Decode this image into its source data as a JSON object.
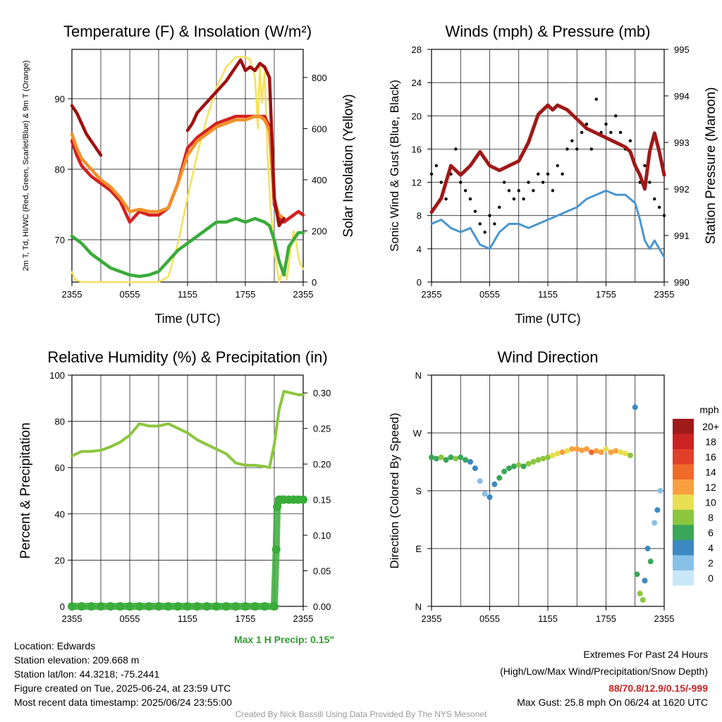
{
  "figure": {
    "credit": "Created By Nick Bassill Using Data Provided By The NYS Mesonet"
  },
  "footer": {
    "location": "Location: Edwards",
    "elevation": "Station elevation: 209.668 m",
    "latlon": "Station lat/lon: 44.3218; -75.2441",
    "created": "Figure created on Tue, 2025-06-24, at 23:59 UTC",
    "recent": "Most recent data timestamp: 2025/06/24 23:55:00",
    "extremes_title": "Extremes For Past 24 Hours",
    "extremes_sub": "(High/Low/Max Wind/Precipitation/Snow Depth)",
    "extremes_values": "88/70.8/12.9/0.15/-999",
    "max_gust": "Max Gust: 25.8 mph On 06/24 at 1620 UTC",
    "max_precip": "Max 1 H Precip: 0.15\""
  },
  "colors": {
    "temp": "#d42020",
    "heat_index": "#e35f1d",
    "temp_9m": "#f0902a",
    "windchill_high": "#9e1010",
    "dewpoint": "#3aab3a",
    "solar": "#f5e05a",
    "wind": "#4a96d0",
    "gust": "#000000",
    "pressure": "#a01818",
    "rh": "#8cc63f",
    "precip": "#3aab3a"
  },
  "chart_data": [
    {
      "id": "temp",
      "type": "line",
      "title": "Temperature (F) & Insolation (W/m²)",
      "xlabel": "Time (UTC)",
      "ylabel": "2m T, Td, HI/WC (Red, Green, Scarlet/Blue) & 9m T (Orange)",
      "y2label": "Solar Insolation (Yellow)",
      "x_ticks": [
        "2355",
        "0555",
        "1155",
        "1755",
        "2355"
      ],
      "y_ticks": [
        70,
        80,
        90
      ],
      "y2_ticks": [
        0,
        200,
        400,
        600,
        800
      ],
      "ylim": [
        64,
        97
      ],
      "y2lim": [
        0,
        910
      ],
      "xlim": [
        0,
        24
      ],
      "series": [
        {
          "key": "temp",
          "x": [
            0,
            0.5,
            1,
            2,
            3,
            4,
            5,
            6,
            7,
            8,
            9,
            10,
            11,
            12,
            13,
            14,
            15,
            16,
            17,
            18,
            18.6,
            19,
            19.5,
            20,
            20.5,
            21,
            21.5,
            22,
            22.5,
            23,
            23.5,
            24
          ],
          "y": [
            84,
            82,
            80.5,
            79,
            78,
            77,
            75.5,
            72.5,
            74,
            73.5,
            73.5,
            74.5,
            78,
            83,
            84.5,
            85.5,
            86.5,
            87,
            87.5,
            87.5,
            87.5,
            87.5,
            87.5,
            87.5,
            86,
            75,
            73,
            72.5,
            73,
            73.5,
            74,
            73.5
          ]
        },
        {
          "key": "temp_9m",
          "x": [
            0,
            0.5,
            1,
            2,
            3,
            4,
            5,
            6,
            7,
            8,
            9,
            10,
            11,
            12,
            13,
            14,
            15,
            16,
            17,
            18,
            18.6,
            19,
            19.5,
            20,
            20.5,
            21,
            21.5,
            22
          ],
          "y": [
            85,
            83,
            81.5,
            80,
            78.5,
            77.5,
            76,
            74,
            74.3,
            74,
            74,
            74.5,
            78,
            82,
            84,
            85,
            86,
            86.5,
            87,
            87,
            87.3,
            87.5,
            87.5,
            87,
            85.5,
            75.5,
            73.5,
            73
          ]
        },
        {
          "key": "windchill_high",
          "x": [
            0,
            0.5,
            1,
            1.5,
            2,
            2.5,
            3
          ],
          "y": [
            89,
            88,
            86.5,
            85,
            84,
            83,
            82
          ]
        },
        {
          "key": "windchill_high",
          "x": [
            12,
            12.5,
            13,
            14,
            15,
            16,
            16.5,
            17,
            17.5,
            18,
            18.5,
            19,
            19.5,
            20,
            20.5,
            21,
            21.5,
            22
          ],
          "y": [
            85.5,
            86.5,
            88,
            89.5,
            91,
            92.5,
            93.5,
            94.5,
            95.5,
            94,
            94.5,
            94,
            95,
            94.5,
            93,
            76,
            72,
            73
          ]
        },
        {
          "key": "dewpoint",
          "x": [
            0,
            1,
            2,
            3,
            4,
            5,
            6,
            7,
            8,
            9,
            10,
            11,
            12,
            13,
            14,
            15,
            16,
            17,
            18,
            19,
            20,
            20.5,
            21,
            21.5,
            22,
            22.5,
            23,
            23.5,
            24
          ],
          "y": [
            70.5,
            69.5,
            68,
            67,
            66,
            65.5,
            65,
            64.8,
            65,
            65.5,
            67,
            68.5,
            69.5,
            70.5,
            71.5,
            72.5,
            72.5,
            73,
            72.5,
            73,
            72.5,
            72,
            70,
            67,
            65,
            69,
            70,
            71,
            71
          ]
        },
        {
          "key": "solar",
          "axis": "y2",
          "x": [
            0,
            0.3,
            1,
            2,
            3,
            4,
            5,
            6,
            7,
            8,
            9,
            10,
            11,
            12,
            13,
            14,
            15,
            16,
            17,
            18,
            18.5,
            19,
            19.3,
            19.5,
            19.7,
            20,
            20.3,
            20.6,
            21,
            21.5,
            22,
            22.3,
            22.6,
            23,
            23.3,
            23.6,
            24
          ],
          "y": [
            40,
            10,
            0,
            0,
            0,
            0,
            0,
            0,
            0,
            0,
            0,
            20,
            150,
            330,
            500,
            640,
            760,
            840,
            880,
            880,
            870,
            800,
            600,
            850,
            700,
            820,
            500,
            300,
            120,
            0,
            60,
            10,
            100,
            200,
            150,
            80,
            50
          ]
        }
      ]
    },
    {
      "id": "wind",
      "type": "line",
      "title": "Winds (mph) & Pressure (mb)",
      "xlabel": "Time (UTC)",
      "ylabel": "Sonic Wind & Gust (Blue, Black)",
      "y2label": "Station Pressure (Maroon)",
      "x_ticks": [
        "2355",
        "0555",
        "1155",
        "1755",
        "2355"
      ],
      "y_ticks": [
        0,
        4,
        8,
        12,
        16,
        20,
        24,
        28
      ],
      "y2_ticks": [
        990,
        991,
        992,
        993,
        994,
        995
      ],
      "ylim": [
        0,
        28
      ],
      "y2lim": [
        990,
        995
      ],
      "xlim": [
        0,
        24
      ],
      "series": [
        {
          "key": "wind",
          "x": [
            0,
            1,
            2,
            3,
            4,
            5,
            6,
            7,
            8,
            9,
            10,
            11,
            12,
            13,
            14,
            15,
            16,
            17,
            18,
            19,
            20,
            21,
            21.5,
            22,
            22.5,
            23,
            23.5,
            24
          ],
          "y": [
            7,
            7.5,
            6.5,
            6,
            6.5,
            4.5,
            4,
            6,
            7,
            7,
            6.5,
            7,
            7.5,
            8,
            8.5,
            9,
            10,
            10.5,
            11,
            10.5,
            10.5,
            9.5,
            7.5,
            5,
            4,
            5,
            4,
            3
          ]
        },
        {
          "key": "gust",
          "type": "scatter",
          "x": [
            0,
            0.5,
            1,
            1.5,
            2,
            2.5,
            3,
            3.5,
            4,
            4.5,
            5,
            5.5,
            6,
            6.5,
            7,
            7.5,
            8,
            8.5,
            9,
            9.5,
            10,
            10.5,
            11,
            11.5,
            12,
            12.5,
            13,
            13.5,
            14,
            14.5,
            15,
            15.5,
            16,
            16.5,
            17,
            17.5,
            18,
            18.5,
            19,
            19.5,
            20,
            20.5,
            21,
            21.5,
            22,
            22.5,
            23,
            23.5,
            24
          ],
          "y": [
            13,
            14,
            12,
            10,
            13,
            16,
            12,
            11,
            10,
            8.5,
            7,
            6,
            8,
            7,
            9,
            12,
            11,
            10,
            11,
            10,
            12,
            11,
            13,
            12,
            13,
            11,
            14,
            13,
            16,
            17,
            16,
            18,
            19,
            16,
            22,
            18,
            19,
            18,
            20,
            18,
            16,
            17,
            14,
            12,
            14,
            12,
            10,
            9,
            8
          ]
        },
        {
          "key": "pressure",
          "axis": "y2",
          "x": [
            0,
            1,
            2,
            3,
            4,
            5,
            6,
            7,
            8,
            9,
            10,
            10.5,
            11,
            11.5,
            12,
            12.5,
            13,
            14,
            15,
            16,
            17,
            18,
            19,
            20,
            20.5,
            21,
            21.5,
            22,
            22.5,
            23,
            23.5,
            24
          ],
          "y": [
            991.5,
            991.8,
            992.5,
            992.3,
            992.5,
            992.8,
            992.5,
            992.4,
            992.5,
            992.6,
            993,
            993.3,
            993.6,
            993.7,
            993.8,
            993.7,
            993.8,
            993.7,
            993.5,
            993.3,
            993.2,
            993.1,
            993,
            992.9,
            992.8,
            992.5,
            992.3,
            992,
            992.8,
            993.2,
            992.8,
            992.3
          ]
        }
      ]
    },
    {
      "id": "rh",
      "type": "line",
      "title": "Relative Humidity (%) & Precipitation (in)",
      "ylabel": "Percent & Precipitation",
      "x_ticks": [
        "2355",
        "0555",
        "1155",
        "1755",
        "2355"
      ],
      "y_ticks": [
        0,
        20,
        40,
        60,
        80,
        100
      ],
      "y2_ticks": [
        "0.00",
        "0.05",
        "0.10",
        "0.15",
        "0.20",
        "0.25",
        "0.30"
      ],
      "ylim": [
        0,
        100
      ],
      "y2lim": [
        0,
        0.325
      ],
      "xlim": [
        0,
        24
      ],
      "series": [
        {
          "key": "rh",
          "x": [
            0,
            1,
            2,
            3,
            4,
            5,
            6,
            7,
            8,
            9,
            10,
            11,
            12,
            13,
            14,
            15,
            16,
            17,
            18,
            19,
            20,
            20.5,
            21,
            21.5,
            22,
            22.5,
            23,
            23.5,
            24
          ],
          "y": [
            65,
            67,
            67,
            67.5,
            69,
            71,
            74,
            79,
            78,
            78,
            79,
            77,
            75,
            72,
            70,
            68,
            66,
            62,
            61,
            61,
            60.5,
            60,
            70,
            85,
            93,
            92.5,
            92,
            91.5,
            91.5
          ]
        },
        {
          "key": "precip",
          "axis": "y2",
          "type": "scatter",
          "x": [
            0,
            1,
            2,
            3,
            4,
            5,
            6,
            7,
            8,
            9,
            10,
            11,
            12,
            13,
            14,
            15,
            16,
            17,
            18,
            19,
            20,
            21,
            21.2,
            21.3,
            21.5,
            21.8,
            22,
            22.5,
            23,
            23.5,
            24
          ],
          "y": [
            0,
            0,
            0,
            0,
            0,
            0,
            0,
            0,
            0,
            0,
            0,
            0,
            0,
            0,
            0,
            0,
            0,
            0,
            0,
            0,
            0,
            0,
            0.08,
            0.14,
            0.15,
            0.15,
            0.15,
            0.15,
            0.15,
            0.15,
            0.15
          ]
        }
      ]
    },
    {
      "id": "wdir",
      "type": "scatter",
      "title": "Wind Direction",
      "ylabel": "Direction (Colored By Speed)",
      "x_ticks": [
        "2355",
        "0555",
        "1155",
        "1755",
        "2355"
      ],
      "y_ticks": [
        "N",
        "E",
        "S",
        "W",
        "N"
      ],
      "ylim": [
        0,
        360
      ],
      "xlim": [
        0,
        24
      ],
      "legend_title": "mph",
      "legend_labels": [
        "20+",
        "18",
        "16",
        "14",
        "12",
        "10",
        "8",
        "6",
        "4",
        "2",
        "0"
      ],
      "legend_colors": [
        "#a11a1a",
        "#cc2222",
        "#e0402a",
        "#f06a2a",
        "#f8a040",
        "#e8e050",
        "#8cc63f",
        "#3aa65a",
        "#3c88c0",
        "#88c0e8",
        "#c8e8f8"
      ],
      "points": {
        "x": [
          0,
          0.5,
          1,
          1.5,
          2,
          2.5,
          3,
          3.5,
          4,
          4.5,
          5,
          5.5,
          6,
          6.5,
          7,
          7.5,
          8,
          8.5,
          9,
          9.5,
          10,
          10.5,
          11,
          11.5,
          12,
          12.5,
          13,
          13.5,
          14,
          14.5,
          15,
          15.5,
          16,
          16.5,
          17,
          17.5,
          18,
          18.5,
          19,
          19.5,
          20,
          20.5,
          21,
          21.2,
          21.5,
          21.8,
          22,
          22.3,
          22.6,
          23,
          23.3,
          23.6
        ],
        "y": [
          232,
          230,
          232,
          228,
          232,
          230,
          232,
          228,
          225,
          215,
          195,
          175,
          170,
          190,
          200,
          210,
          215,
          218,
          220,
          218,
          222,
          225,
          228,
          230,
          232,
          235,
          238,
          240,
          242,
          245,
          245,
          243,
          245,
          240,
          242,
          240,
          245,
          240,
          242,
          240,
          238,
          235,
          310,
          50,
          20,
          10,
          40,
          90,
          70,
          130,
          150,
          180
        ],
        "speed": [
          6,
          7,
          8,
          6,
          7,
          8,
          6,
          7,
          5,
          4,
          3,
          3,
          4,
          5,
          6,
          7,
          6,
          7,
          8,
          7,
          8,
          9,
          8,
          9,
          9,
          10,
          11,
          12,
          11,
          12,
          13,
          12,
          13,
          14,
          12,
          13,
          11,
          12,
          13,
          11,
          10,
          8,
          4,
          6,
          8,
          9,
          5,
          4,
          6,
          3,
          4,
          3
        ]
      }
    }
  ]
}
